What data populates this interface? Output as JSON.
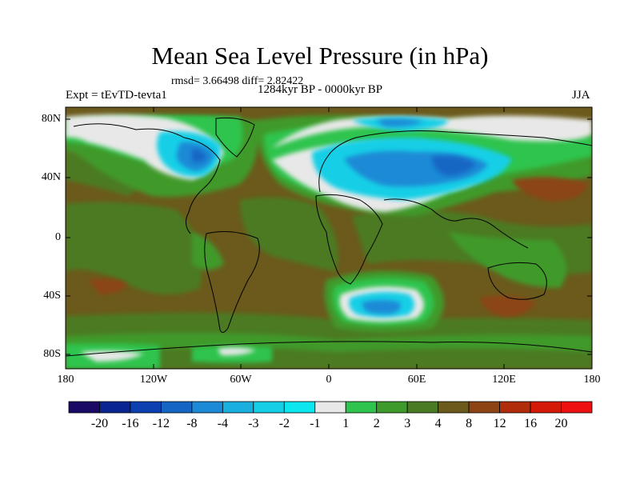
{
  "title": "Mean Sea Level Pressure (in hPa)",
  "stats": "rmsd= 3.66498 diff= 2.82422",
  "experiment": "Expt = tEvTD-tevta1",
  "period": "1284kyr BP - 0000kyr BP",
  "season": "JJA",
  "y_labels": [
    "80N",
    "40N",
    "0",
    "40S",
    "80S"
  ],
  "x_labels": [
    "180",
    "120W",
    "60W",
    "0",
    "60E",
    "120E",
    "180"
  ],
  "colorbar": {
    "labels": [
      "-20",
      "-16",
      "-12",
      "-8",
      "-4",
      "-3",
      "-2",
      "-1",
      "1",
      "2",
      "3",
      "4",
      "8",
      "12",
      "16",
      "20"
    ],
    "colors": [
      "#1a0a66",
      "#0b2590",
      "#0c3fb0",
      "#1566c4",
      "#1c8ad6",
      "#19b0e0",
      "#14cfe6",
      "#0ce6ee",
      "#e8e8e8",
      "#2ec44e",
      "#3f9a2c",
      "#4b7a24",
      "#6b5a1c",
      "#8c4414",
      "#b02c0a",
      "#d41a06",
      "#ee1010"
    ]
  },
  "palette": {
    "ocean_base": "#6b5a1c",
    "moderate": "#4b7a24",
    "green": "#3f9a2c",
    "bright_green": "#2ec44e",
    "white": "#e8e8e8",
    "cyan": "#14cfe6",
    "blue": "#1c8ad6",
    "brown": "#8c4414",
    "coast": "#000000"
  }
}
